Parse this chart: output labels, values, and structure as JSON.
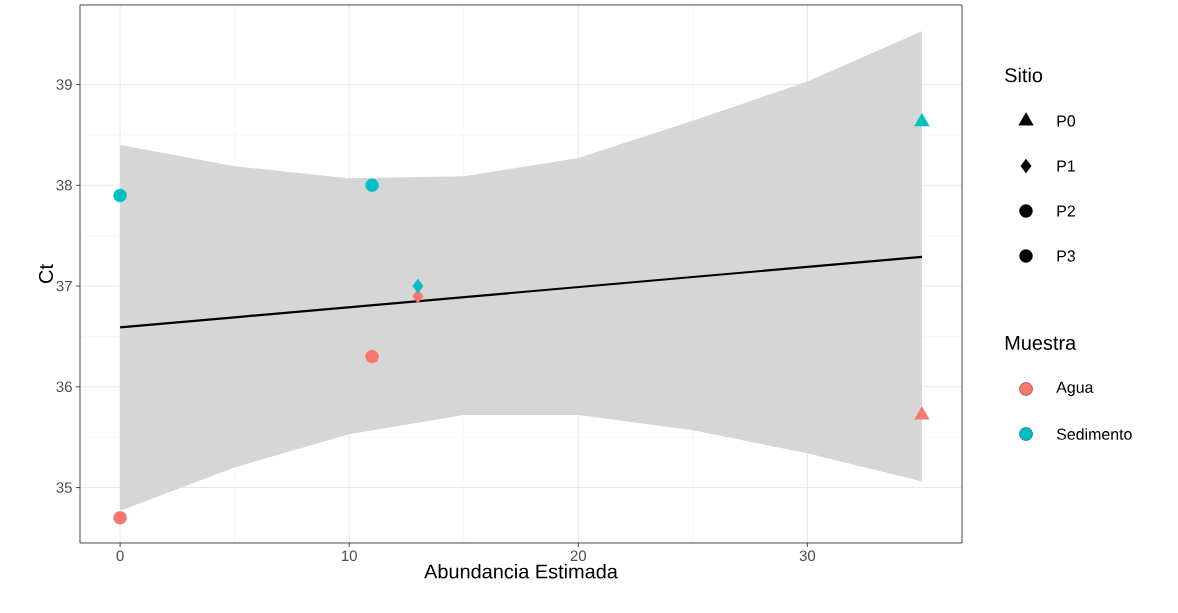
{
  "chart_data": {
    "type": "scatter",
    "xlabel": "Abundancia Estimada",
    "ylabel": "Ct",
    "xlim": [
      -1.75,
      36.75
    ],
    "ylim": [
      34.45,
      39.79
    ],
    "xticks": [
      0,
      10,
      20,
      30
    ],
    "yticks": [
      35,
      36,
      37,
      38,
      39
    ],
    "grid": true,
    "legend": "right",
    "legend_title": "Sitio",
    "annotations": [
      "Muestra"
    ],
    "series": [
      {
        "type": "line",
        "color": "#000000",
        "marker": "none",
        "line_style": "solid",
        "x": [
          0,
          5,
          10,
          15,
          20,
          25,
          30,
          35
        ],
        "values": [
          36.59,
          36.69,
          36.79,
          36.89,
          36.99,
          37.09,
          37.19,
          37.29
        ],
        "lower": [
          34.77,
          35.2,
          35.53,
          35.72,
          35.72,
          35.57,
          35.34,
          35.06
        ],
        "upper": [
          38.4,
          38.19,
          38.07,
          38.09,
          38.27,
          38.64,
          39.03,
          39.53
        ]
      },
      {
        "marker": "triangle",
        "color": "#f8766d",
        "x": [
          35
        ],
        "values": [
          35.72
        ]
      },
      {
        "marker": "triangle",
        "color": "#00bfc4",
        "x": [
          35
        ],
        "values": [
          38.63
        ]
      },
      {
        "marker": "diamond",
        "color": "#f8766d",
        "x": [
          13
        ],
        "values": [
          36.9
        ]
      },
      {
        "marker": "diamond",
        "color": "#00bfc4",
        "x": [
          13
        ],
        "values": [
          37.0
        ]
      },
      {
        "marker": "circle",
        "color": "#f8766d",
        "x": [
          11
        ],
        "values": [
          36.3
        ]
      },
      {
        "marker": "circle",
        "color": "#00bfc4",
        "x": [
          11
        ],
        "values": [
          38.0
        ]
      },
      {
        "marker": "circle",
        "color": "#f8766d",
        "x": [
          0
        ],
        "values": [
          34.7
        ]
      },
      {
        "marker": "circle",
        "color": "#00bfc4",
        "x": [
          0
        ],
        "values": [
          37.9
        ]
      },
      {
        "name": "P0",
        "color": "#000000",
        "marker": "triangle"
      },
      {
        "name": "P1",
        "color": "#000000",
        "marker": "diamond"
      },
      {
        "name": "P2",
        "color": "#000000",
        "marker": "circle"
      },
      {
        "name": "P3",
        "color": "#000000",
        "marker": "circle"
      },
      {
        "name": "Agua",
        "color": "#f8766d",
        "marker": "circle"
      },
      {
        "name": "Sedimento",
        "color": "#00bfc4",
        "marker": "circle"
      }
    ]
  }
}
